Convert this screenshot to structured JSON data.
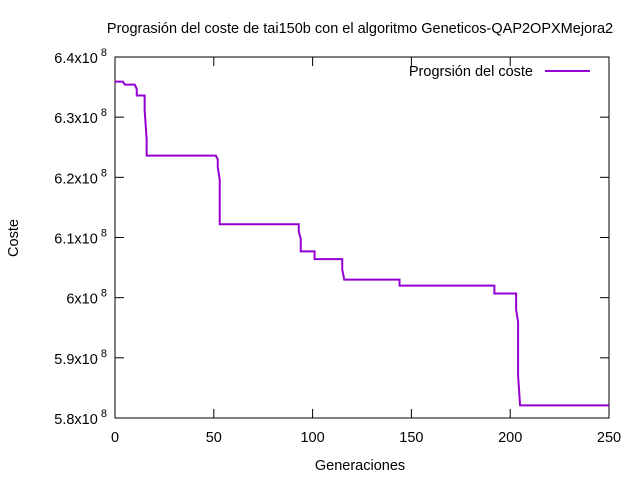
{
  "chart_data": {
    "type": "line",
    "title": "Prograsión del coste de tai150b con el algoritmo Geneticos-QAP2OPXMejora2",
    "xlabel": "Generaciones",
    "ylabel": "Coste",
    "xlim": [
      0,
      250
    ],
    "ylim": [
      580000000,
      640000000
    ],
    "x_ticks": [
      0,
      50,
      100,
      150,
      200,
      250
    ],
    "y_ticks": [
      {
        "value": 580000000,
        "mantissa": "5.8x10",
        "exp": "8"
      },
      {
        "value": 590000000,
        "mantissa": "5.9x10",
        "exp": "8"
      },
      {
        "value": 600000000,
        "mantissa": "6x10",
        "exp": "8"
      },
      {
        "value": 610000000,
        "mantissa": "6.1x10",
        "exp": "8"
      },
      {
        "value": 620000000,
        "mantissa": "6.2x10",
        "exp": "8"
      },
      {
        "value": 630000000,
        "mantissa": "6.3x10",
        "exp": "8"
      },
      {
        "value": 640000000,
        "mantissa": "6.4x10",
        "exp": "8"
      }
    ],
    "grid": false,
    "legend_position": "top-right",
    "series": [
      {
        "name": "Progrsión del coste",
        "color": "#9400d3",
        "points": [
          [
            0,
            635900000
          ],
          [
            4,
            635900000
          ],
          [
            5,
            635400000
          ],
          [
            10,
            635400000
          ],
          [
            11,
            634700000
          ],
          [
            11,
            633600000
          ],
          [
            15,
            633600000
          ],
          [
            15,
            631200000
          ],
          [
            16,
            626400000
          ],
          [
            16,
            623600000
          ],
          [
            51,
            623600000
          ],
          [
            52,
            623000000
          ],
          [
            52,
            621700000
          ],
          [
            53,
            619600000
          ],
          [
            53,
            615000000
          ],
          [
            53,
            612200000
          ],
          [
            93,
            612200000
          ],
          [
            93,
            611000000
          ],
          [
            94,
            609800000
          ],
          [
            94,
            607700000
          ],
          [
            101,
            607700000
          ],
          [
            101,
            606400000
          ],
          [
            115,
            606400000
          ],
          [
            115,
            604700000
          ],
          [
            116,
            603000000
          ],
          [
            144,
            603000000
          ],
          [
            144,
            602000000
          ],
          [
            192,
            602000000
          ],
          [
            192,
            600700000
          ],
          [
            203,
            600700000
          ],
          [
            203,
            598000000
          ],
          [
            204,
            596000000
          ],
          [
            204,
            587000000
          ],
          [
            205,
            582100000
          ],
          [
            250,
            582100000
          ]
        ]
      }
    ]
  }
}
